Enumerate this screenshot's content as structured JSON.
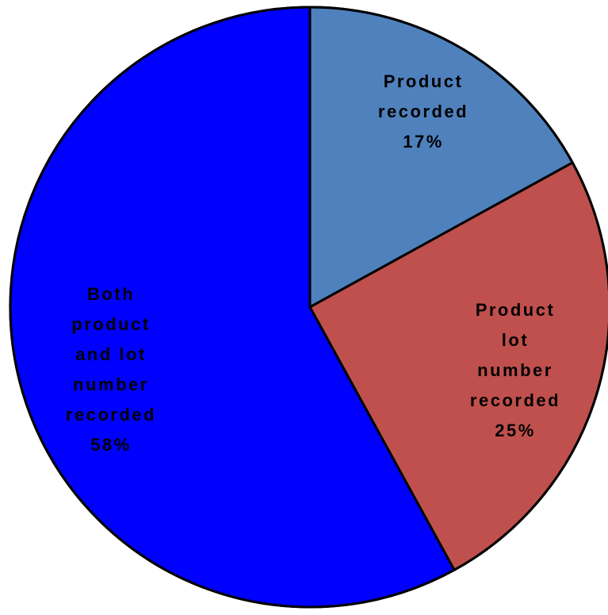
{
  "chart_data": {
    "type": "pie",
    "title": "",
    "start_angle_deg": 0,
    "direction": "clockwise",
    "slices": [
      {
        "label_lines": [
          "Product",
          "recorded",
          "17%"
        ],
        "value": 17,
        "color": "#4f81bd"
      },
      {
        "label_lines": [
          "Product",
          "lot",
          "number",
          "recorded",
          "25%"
        ],
        "value": 25,
        "color": "#c0504d"
      },
      {
        "label_lines": [
          "Both",
          "product",
          "and lot",
          "number",
          "recorded",
          "58%"
        ],
        "value": 58,
        "color": "#0000ff"
      }
    ]
  }
}
